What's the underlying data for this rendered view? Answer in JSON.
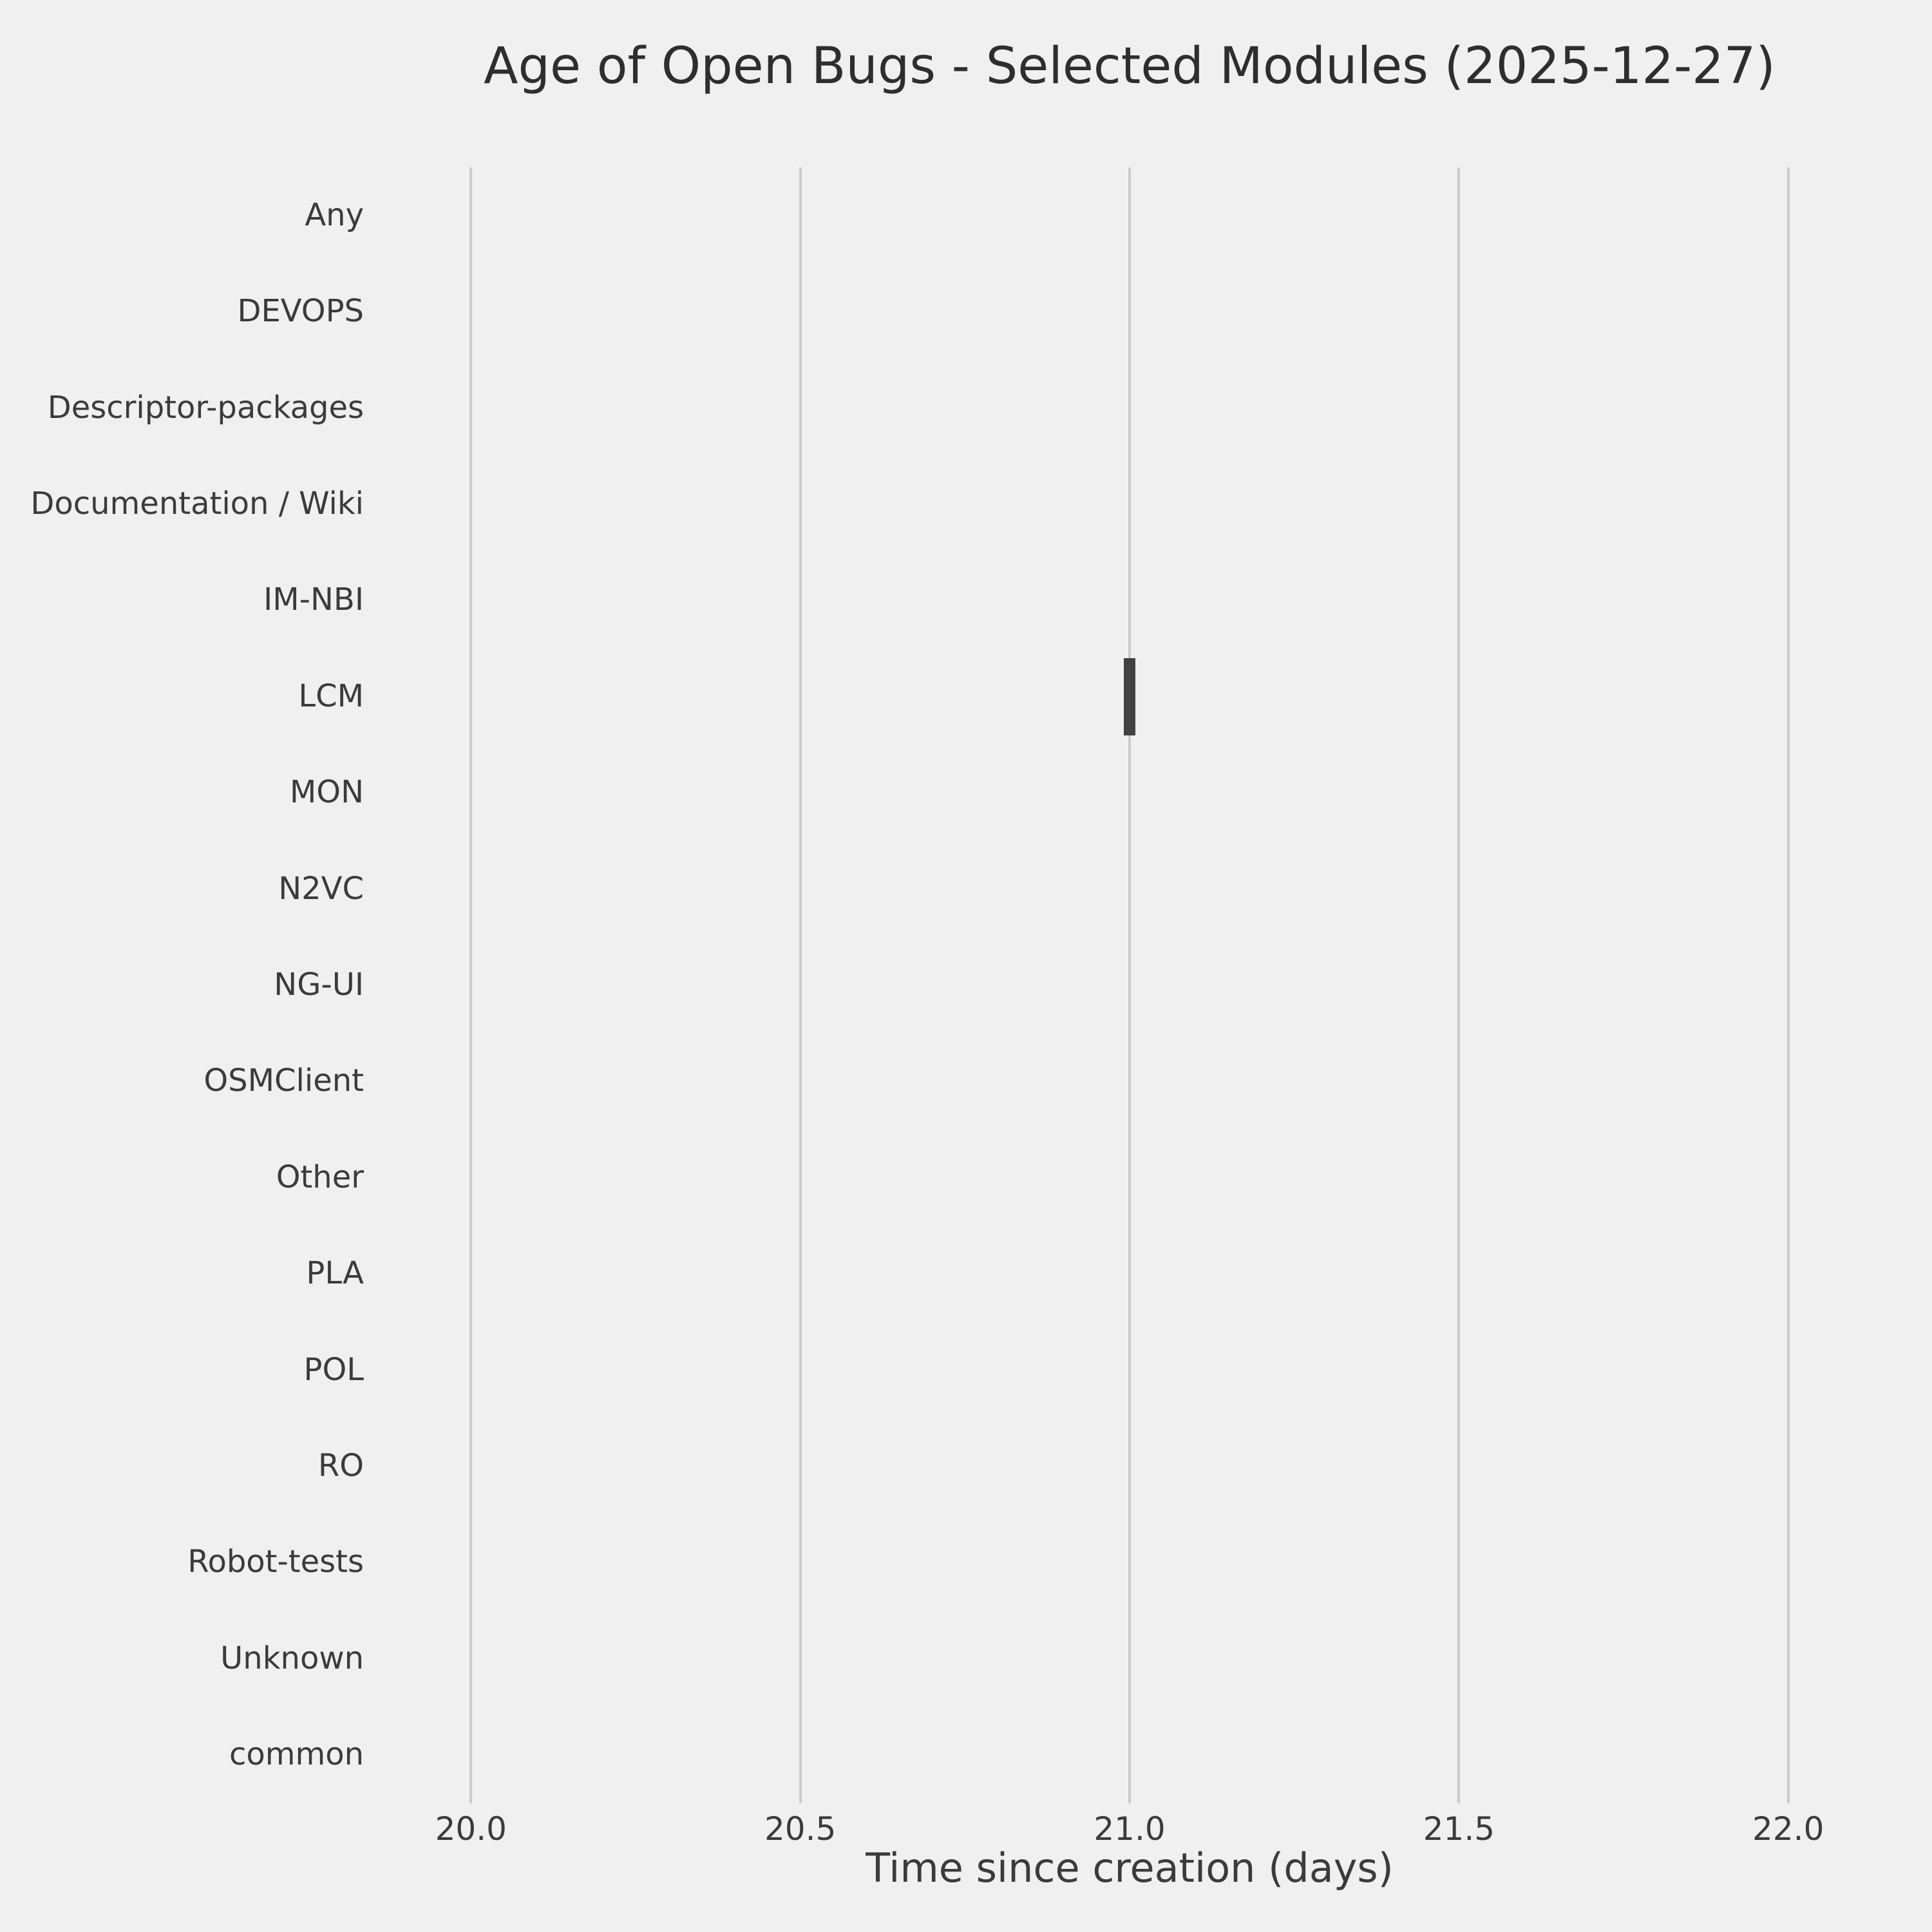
{
  "chart_data": {
    "type": "boxplot",
    "orientation": "horizontal",
    "title": "Age of Open Bugs - Selected Modules (2025-12-27)",
    "xlabel": "Time since creation (days)",
    "ylabel": "",
    "categories": [
      "Any",
      "DEVOPS",
      "Descriptor-packages",
      "Documentation / Wiki",
      "IM-NBI",
      "LCM",
      "MON",
      "N2VC",
      "NG-UI",
      "OSMClient",
      "Other",
      "PLA",
      "POL",
      "RO",
      "Robot-tests",
      "Unknown",
      "common"
    ],
    "x_ticks": [
      {
        "value": 20.0,
        "label": "20.0"
      },
      {
        "value": 20.5,
        "label": "20.5"
      },
      {
        "value": 21.0,
        "label": "21.0"
      },
      {
        "value": 21.5,
        "label": "21.5"
      },
      {
        "value": 22.0,
        "label": "22.0"
      }
    ],
    "xlim": [
      19.9,
      22.1
    ],
    "grid": true,
    "legend": false,
    "boxes": [
      {
        "category": "LCM",
        "min": 21.0,
        "q1": 21.0,
        "median": 21.0,
        "q3": 21.0,
        "max": 21.0
      }
    ],
    "colors": {
      "background": "#f0f0f0",
      "gridline": "#cbcbcb",
      "box": "#424242",
      "text": "#3b3b3b",
      "title_text": "#2e2e2e"
    }
  }
}
